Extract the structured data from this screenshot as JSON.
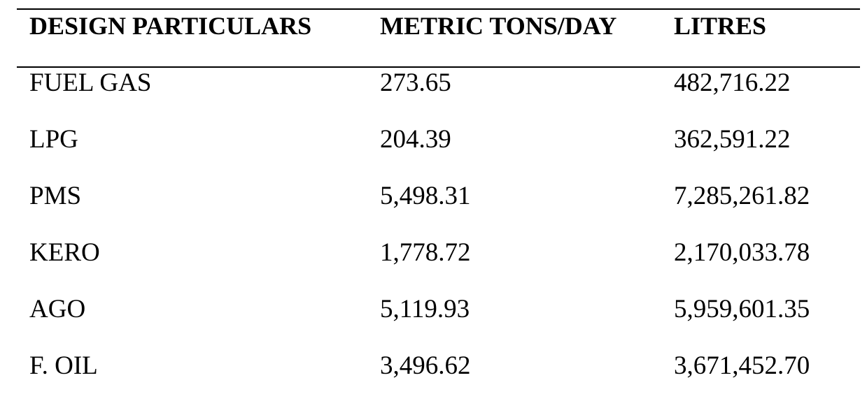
{
  "table": {
    "headers": [
      "DESIGN PARTICULARS",
      "METRIC TONS/DAY",
      "LITRES"
    ],
    "rows": [
      [
        "FUEL GAS",
        "273.65",
        "482,716.22"
      ],
      [
        "LPG",
        "204.39",
        "362,591.22"
      ],
      [
        "PMS",
        "5,498.31",
        "7,285,261.82"
      ],
      [
        "KERO",
        "1,778.72",
        "2,170,033.78"
      ],
      [
        "AGO",
        "5,119.93",
        "5,959,601.35"
      ],
      [
        "F. OIL",
        "3,496.62",
        "3,671,452.70"
      ]
    ]
  }
}
